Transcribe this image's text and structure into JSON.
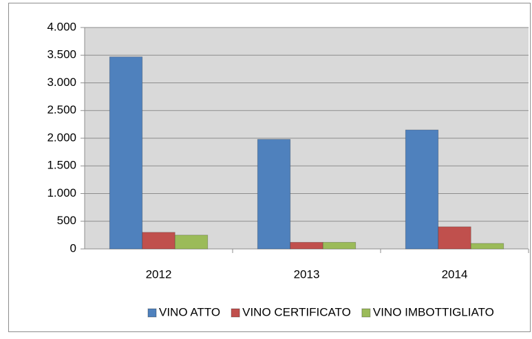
{
  "chart_data": {
    "type": "bar",
    "categories": [
      "2012",
      "2013",
      "2014"
    ],
    "series": [
      {
        "name": "VINO ATTO",
        "color": "#4f81bd",
        "values": [
          3470,
          1980,
          2150
        ]
      },
      {
        "name": "VINO CERTIFICATO",
        "color": "#c0504d",
        "values": [
          300,
          120,
          400
        ]
      },
      {
        "name": "VINO IMBOTTIGLIATO",
        "color": "#9bbb59",
        "values": [
          250,
          120,
          100
        ]
      }
    ],
    "ylim": [
      0,
      4000
    ],
    "yticks": [
      0,
      500,
      {
        "value": 1000,
        "label": "1.000"
      },
      {
        "value": 1500,
        "label": "1.500"
      },
      {
        "value": 2000,
        "label": "2.000"
      },
      {
        "value": 2500,
        "label": "2.500"
      },
      {
        "value": 3000,
        "label": "3.000"
      },
      {
        "value": 3500,
        "label": "3.500"
      },
      {
        "value": 4000,
        "label": "4.000"
      }
    ],
    "grid": true,
    "legend": "bottom"
  }
}
